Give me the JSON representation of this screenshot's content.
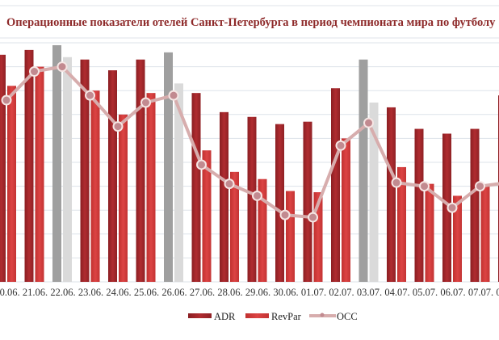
{
  "chart_data": {
    "type": "bar",
    "title": "Операционные показатели отелей Санкт-Петербурга в период чемпионата мира по футболу",
    "xlabel": "",
    "ylabel": "",
    "ylim": [
      0,
      100
    ],
    "grid": true,
    "legend_position": "bottom",
    "categories": [
      "20.06.",
      "21.06.",
      "22.06.",
      "23.06.",
      "24.06.",
      "25.06.",
      "26.06.",
      "27.06.",
      "28.06.",
      "29.06.",
      "30.06.",
      "01.07.",
      "02.07.",
      "03.07.",
      "04.07.",
      "05.07.",
      "06.07.",
      "07.07.",
      "08.07."
    ],
    "highlighted_categories": [
      "22.06.",
      "26.06.",
      "03.07."
    ],
    "series": [
      {
        "name": "ADR",
        "type": "bar",
        "values": [
          95,
          97,
          99,
          93,
          88.5,
          93,
          96,
          79,
          71,
          69,
          66,
          67,
          81,
          93,
          73,
          64,
          62,
          64,
          78
        ]
      },
      {
        "name": "RevPar",
        "type": "bar",
        "values": [
          82,
          90,
          94,
          80,
          70,
          79,
          83,
          55,
          46,
          43,
          38,
          37.5,
          60,
          75,
          48,
          41,
          36,
          40,
          40
        ]
      },
      {
        "name": "OCC",
        "type": "line",
        "values": [
          76,
          88,
          90,
          78,
          65,
          75,
          78,
          49,
          41,
          36,
          28,
          27,
          57,
          66.5,
          41.5,
          40,
          31,
          40,
          41.5
        ]
      }
    ],
    "colors": {
      "adr": "#a3262b",
      "revpar": "#d23a3b",
      "occ_line": "#d7adad",
      "occ_marker": "#c28a90",
      "highlight_dark": "#9f9f9f",
      "highlight_light": "#dadada",
      "title": "#8e2a2a"
    }
  }
}
